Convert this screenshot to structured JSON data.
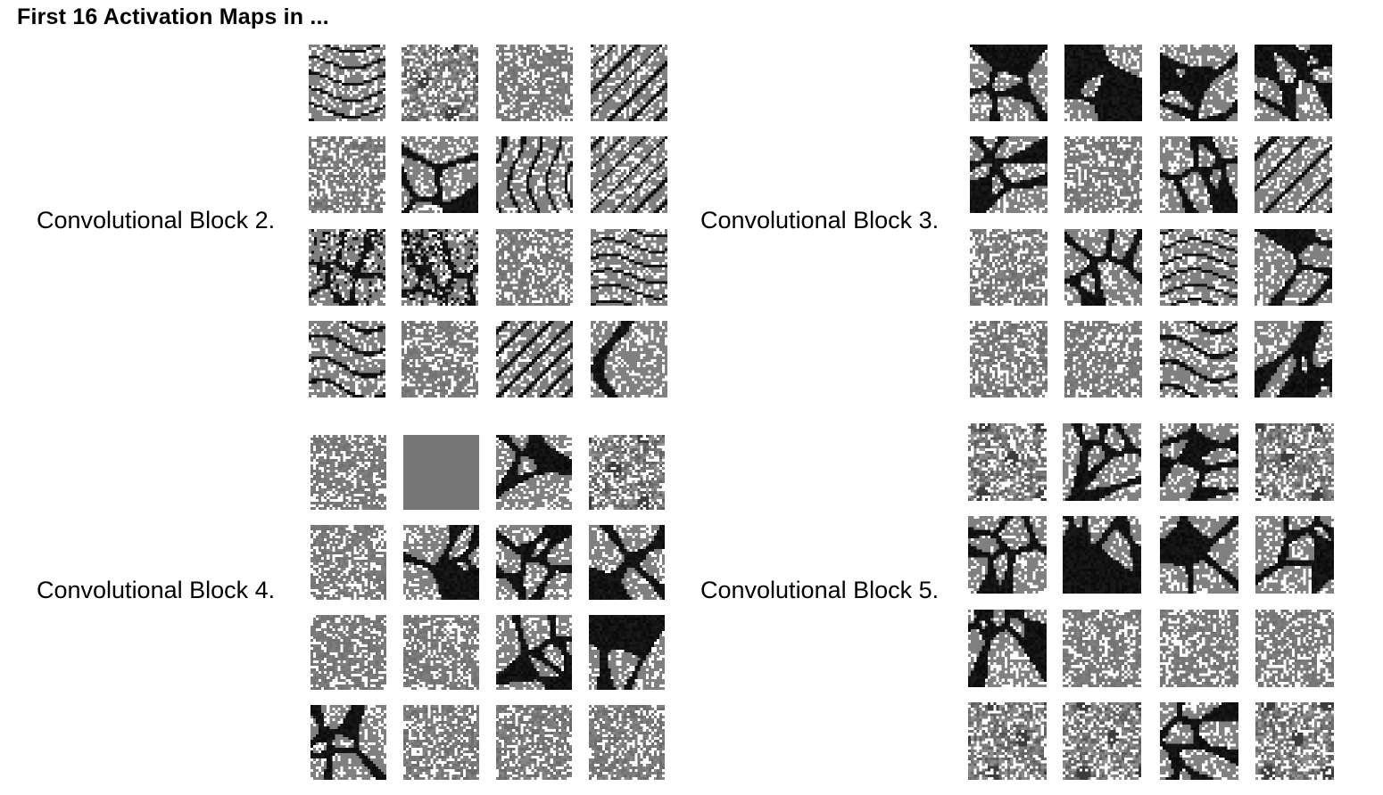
{
  "title": "First 16 Activation Maps in ...",
  "blocks": [
    {
      "label": "Convolutional Block 2.",
      "maps": [
        "stripes",
        "mottled",
        "uniform",
        "diagonal",
        "faint",
        "cells",
        "vertical",
        "diagonal",
        "dense-blobs",
        "dense-blobs",
        "uniform",
        "stripes",
        "stripes",
        "uniform",
        "diagonal",
        "curve"
      ]
    },
    {
      "label": "Convolutional Block 3.",
      "maps": [
        "cells",
        "cells",
        "cells",
        "cells",
        "cells",
        "uniform",
        "cells",
        "diagonal",
        "faint",
        "cells",
        "stripes",
        "cells",
        "faint",
        "uniform",
        "stripes",
        "cells"
      ]
    },
    {
      "label": "Convolutional Block 4.",
      "maps": [
        "uniform",
        "flat",
        "cells",
        "mottled",
        "uniform",
        "cells",
        "cells",
        "cells",
        "uniform",
        "uniform",
        "cells",
        "cells",
        "cells",
        "faint",
        "faint",
        "faint"
      ]
    },
    {
      "label": "Convolutional Block 5.",
      "maps": [
        "mottled",
        "cells",
        "cells",
        "mottled",
        "cells",
        "cells",
        "cells",
        "cells",
        "cells",
        "uniform",
        "uniform",
        "uniform",
        "mottled",
        "mottled",
        "cells",
        "mottled"
      ]
    }
  ],
  "colors": {
    "background": "#ffffff",
    "black": "#000000",
    "mid_gray": "#7f7f7f",
    "white_speck": "#ffffff"
  }
}
